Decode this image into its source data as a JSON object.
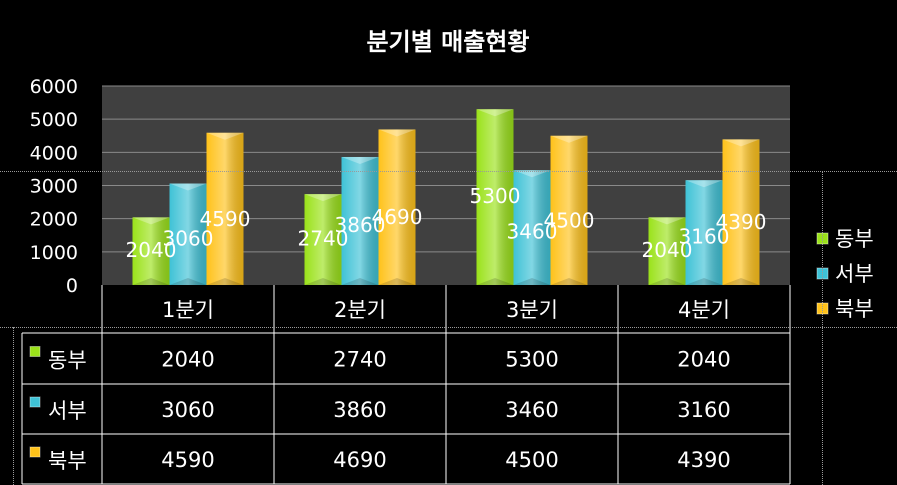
{
  "chart_data": {
    "type": "bar",
    "title": "분기별 매출현황",
    "categories": [
      "1분기",
      "2분기",
      "3분기",
      "4분기"
    ],
    "series": [
      {
        "name": "동부",
        "values": [
          2040,
          2740,
          5300,
          2040
        ],
        "color": "#9be21a"
      },
      {
        "name": "서부",
        "values": [
          3060,
          3860,
          3460,
          3160
        ],
        "color": "#3fc2d6"
      },
      {
        "name": "북부",
        "values": [
          4590,
          4690,
          4500,
          4390
        ],
        "color": "#ffc21a"
      }
    ],
    "ylim": [
      0,
      6000
    ],
    "yticks": [
      0,
      1000,
      2000,
      3000,
      4000,
      5000,
      6000
    ],
    "grid": true,
    "legend": "right",
    "data_table": true,
    "plot_background": "#404040",
    "page_background": "#000000"
  }
}
